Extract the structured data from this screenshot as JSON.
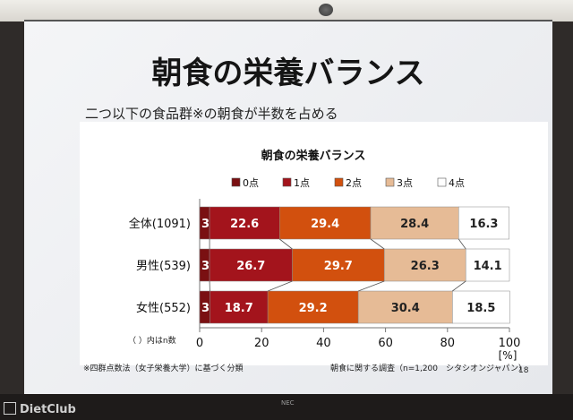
{
  "slide": {
    "title": "朝食の栄養バランス",
    "subtitle": "二つ以下の食品群※の朝食が半数を占める",
    "footnote_left": "※四群点数法（女子栄養大学）に基づく分類",
    "source": "朝食に関する調査（n=1,200　シタシオンジャパン）",
    "page_number": "18",
    "n_note": "（ ）内はn数",
    "projector_brand": "NEC",
    "watermark": "DietClub"
  },
  "colors": {
    "0点": "#7a1012",
    "1点": "#a3141c",
    "2点": "#d2500e",
    "3点": "#e6bb96",
    "4点": "#ffffff"
  },
  "chart_data": {
    "type": "bar",
    "orientation": "horizontal",
    "stacked": true,
    "title": "朝食の栄養バランス",
    "categories": [
      "全体(1091)",
      "男性(539)",
      "女性(552)"
    ],
    "series": [
      {
        "name": "0点",
        "values": [
          3.2,
          3.2,
          3.3
        ]
      },
      {
        "name": "1点",
        "values": [
          22.6,
          26.7,
          18.7
        ]
      },
      {
        "name": "2点",
        "values": [
          29.4,
          29.7,
          29.2
        ]
      },
      {
        "name": "3点",
        "values": [
          28.4,
          26.3,
          30.4
        ]
      },
      {
        "name": "4点",
        "values": [
          16.3,
          14.1,
          18.5
        ]
      }
    ],
    "xlim": [
      0,
      100
    ],
    "xticks": [
      "0",
      "20",
      "40",
      "60",
      "80",
      "100"
    ],
    "xunit": "[%]",
    "legend_position": "top",
    "grid": false
  }
}
